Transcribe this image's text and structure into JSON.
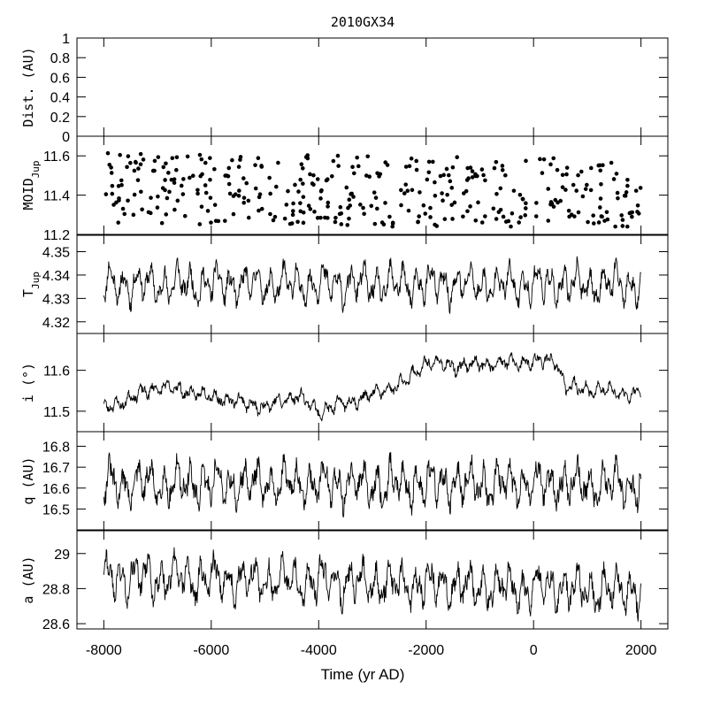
{
  "chart_data": {
    "type": "line",
    "title": "2010GX34",
    "xlabel": "Time (yr AD)",
    "xlim": [
      -8500,
      2500
    ],
    "xticks": [
      -8000,
      -6000,
      -4000,
      -2000,
      0,
      2000
    ],
    "panels": [
      {
        "id": "dist",
        "ylabel": "Dist. (AU)",
        "ylabel_sub": "",
        "ylim": [
          0,
          1
        ],
        "yticks": [
          0,
          0.2,
          0.4,
          0.6,
          0.8,
          1
        ],
        "ytick_labels": [
          "0",
          "0.2",
          "0.4",
          "0.6",
          "0.8",
          "1"
        ],
        "style": "none",
        "series": []
      },
      {
        "id": "moid",
        "ylabel": "MOID",
        "ylabel_sub": "Jup",
        "ylim": [
          11.2,
          11.7
        ],
        "yticks": [
          11.2,
          11.4,
          11.6
        ],
        "ytick_labels": [
          "11.2",
          "11.4",
          "11.6"
        ],
        "style": "scatter",
        "mean": 11.42,
        "amp": 0.11,
        "period": 240,
        "trend": -3.5e-06,
        "noise": 0.07,
        "n": 380,
        "seed": 7
      },
      {
        "id": "tjup",
        "ylabel": "T",
        "ylabel_sub": "Jup",
        "ylim": [
          4.315,
          4.357
        ],
        "yticks": [
          4.32,
          4.33,
          4.34,
          4.35
        ],
        "ytick_labels": [
          "4.32",
          "4.33",
          "4.34",
          "4.35"
        ],
        "style": "line",
        "mean": 4.336,
        "amp": 0.008,
        "period": 248,
        "noise": 0.003,
        "n": 1100,
        "seed": 11
      },
      {
        "id": "incl",
        "ylabel": "i (°)",
        "ylabel_sub": "",
        "ylim": [
          11.45,
          11.69
        ],
        "yticks": [
          11.5,
          11.6
        ],
        "ytick_labels": [
          "11.5",
          "11.6"
        ],
        "style": "line",
        "trend_points": [
          [
            -8000,
            11.505
          ],
          [
            -7000,
            11.56
          ],
          [
            -6500,
            11.55
          ],
          [
            -5000,
            11.51
          ],
          [
            -4400,
            11.54
          ],
          [
            -4000,
            11.5
          ],
          [
            -3000,
            11.54
          ],
          [
            -2400,
            11.57
          ],
          [
            -2000,
            11.62
          ],
          [
            -1500,
            11.61
          ],
          [
            -1000,
            11.615
          ],
          [
            0,
            11.62
          ],
          [
            400,
            11.625
          ],
          [
            600,
            11.56
          ],
          [
            2000,
            11.54
          ]
        ],
        "amp": 0.017,
        "period": 230,
        "noise": 0.009,
        "n": 1100,
        "seed": 23
      },
      {
        "id": "q",
        "ylabel": "q (AU)",
        "ylabel_sub": "",
        "ylim": [
          16.4,
          16.87
        ],
        "yticks": [
          16.5,
          16.6,
          16.7,
          16.8
        ],
        "ytick_labels": [
          "16.5",
          "16.6",
          "16.7",
          "16.8"
        ],
        "style": "line",
        "mean": 16.62,
        "amp": 0.1,
        "period": 248,
        "noise": 0.045,
        "n": 1100,
        "seed": 31
      },
      {
        "id": "a",
        "ylabel": "a (AU)",
        "ylabel_sub": "",
        "ylim": [
          28.57,
          29.13
        ],
        "yticks": [
          28.6,
          28.8,
          29
        ],
        "ytick_labels": [
          "28.6",
          "28.8",
          "29"
        ],
        "style": "line",
        "mean": 28.83,
        "amp": 0.12,
        "period": 250,
        "trend": -8e-06,
        "noise": 0.05,
        "n": 1100,
        "seed": 43
      }
    ]
  }
}
